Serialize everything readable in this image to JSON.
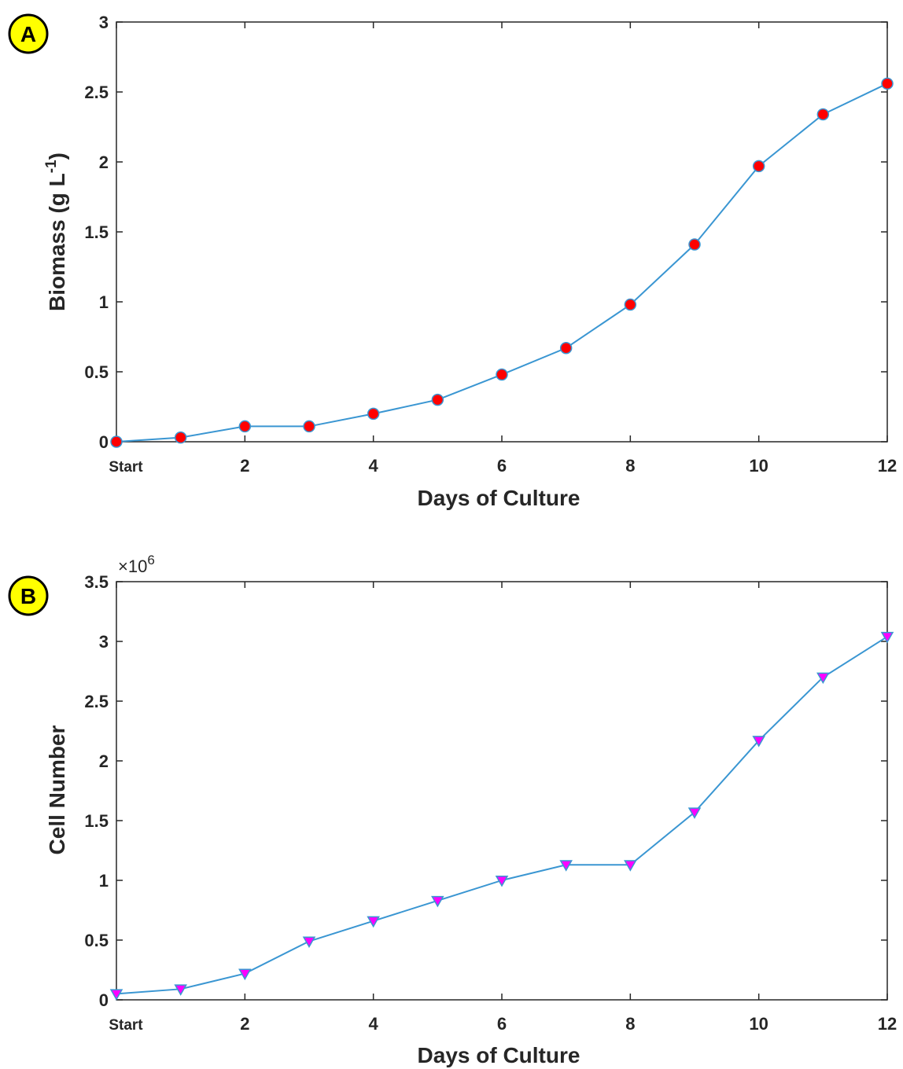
{
  "chart_data": [
    {
      "type": "line",
      "panel_label": "A",
      "xlabel": "Days of Culture",
      "ylabel_main": "Biomass (g L",
      "ylabel_sup": "-1",
      "ylabel_tail": ")",
      "x": [
        0,
        1,
        2,
        3,
        4,
        5,
        6,
        7,
        8,
        9,
        10,
        11,
        12
      ],
      "xlim": [
        0,
        12
      ],
      "ylim": [
        0,
        3
      ],
      "x_ticks": [
        {
          "value": 0,
          "label": "Start"
        },
        {
          "value": 2,
          "label": "2"
        },
        {
          "value": 4,
          "label": "4"
        },
        {
          "value": 6,
          "label": "6"
        },
        {
          "value": 8,
          "label": "8"
        },
        {
          "value": 10,
          "label": "10"
        },
        {
          "value": 12,
          "label": "12"
        }
      ],
      "y_ticks": [
        {
          "value": 0,
          "label": "0"
        },
        {
          "value": 0.5,
          "label": "0.5"
        },
        {
          "value": 1,
          "label": "1"
        },
        {
          "value": 1.5,
          "label": "1.5"
        },
        {
          "value": 2,
          "label": "2"
        },
        {
          "value": 2.5,
          "label": "2.5"
        },
        {
          "value": 3,
          "label": "3"
        }
      ],
      "series": [
        {
          "values": [
            0,
            0.03,
            0.11,
            0.11,
            0.2,
            0.3,
            0.48,
            0.67,
            0.98,
            1.41,
            1.97,
            2.34,
            2.56
          ],
          "line_color": "#3a96d2",
          "marker": "circle",
          "marker_color": "#ff0000"
        }
      ],
      "grid": false
    },
    {
      "type": "line",
      "panel_label": "B",
      "xlabel": "Days of Culture",
      "ylabel": "Cell Number",
      "exponent_label": "×10",
      "exponent_sup": "6",
      "x": [
        0,
        1,
        2,
        3,
        4,
        5,
        6,
        7,
        8,
        9,
        10,
        11,
        12
      ],
      "xlim": [
        0,
        12
      ],
      "ylim": [
        0,
        3.5
      ],
      "x_ticks": [
        {
          "value": 0,
          "label": "Start"
        },
        {
          "value": 2,
          "label": "2"
        },
        {
          "value": 4,
          "label": "4"
        },
        {
          "value": 6,
          "label": "6"
        },
        {
          "value": 8,
          "label": "8"
        },
        {
          "value": 10,
          "label": "10"
        },
        {
          "value": 12,
          "label": "12"
        }
      ],
      "y_ticks": [
        {
          "value": 0,
          "label": "0"
        },
        {
          "value": 0.5,
          "label": "0.5"
        },
        {
          "value": 1,
          "label": "1"
        },
        {
          "value": 1.5,
          "label": "1.5"
        },
        {
          "value": 2,
          "label": "2"
        },
        {
          "value": 2.5,
          "label": "2.5"
        },
        {
          "value": 3,
          "label": "3"
        },
        {
          "value": 3.5,
          "label": "3.5"
        }
      ],
      "series": [
        {
          "values": [
            0.05,
            0.09,
            0.22,
            0.49,
            0.66,
            0.83,
            1.0,
            1.13,
            1.13,
            1.57,
            2.17,
            2.7,
            3.04
          ],
          "line_color": "#3a96d2",
          "marker": "triangle-down",
          "marker_color": "#ff00ff"
        }
      ],
      "grid": false
    }
  ],
  "badge_fill": "#ffff00"
}
